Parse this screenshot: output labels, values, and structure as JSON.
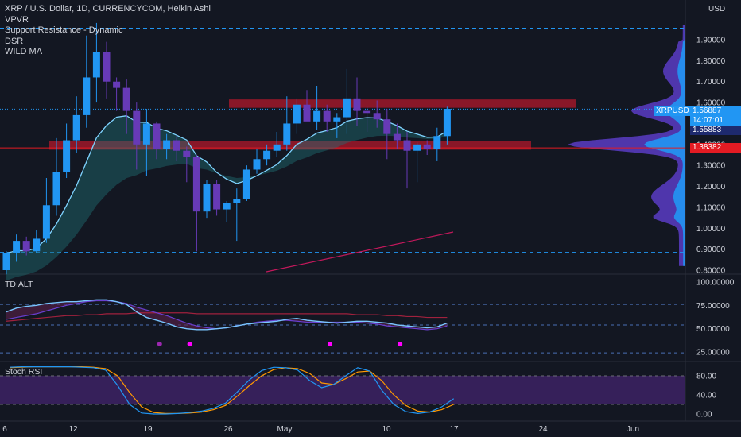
{
  "legend": {
    "title": "XRP / U.S. Dollar, 1D, CURRENCYCOM, Heikin Ashi",
    "indicators": [
      "VPVR",
      "Support Resistance - Dynamic",
      "DSR",
      "WILD MA"
    ]
  },
  "price_axis": {
    "currency": "USD",
    "ticks": [
      "1.90000",
      "1.80000",
      "1.70000",
      "1.60000",
      "1.50000",
      "1.40000",
      "1.30000",
      "1.20000",
      "1.10000",
      "1.00000",
      "0.90000",
      "0.80000"
    ],
    "symbol_tag": "XRPUSD",
    "last_price": "1.56887",
    "countdown": "14:07:01",
    "level_1": "1.55883",
    "level_2": "1.38382"
  },
  "tdi_pane": {
    "title": "TDIALT",
    "ticks": [
      "100.00000",
      "75.00000",
      "50.00000",
      "25.00000"
    ]
  },
  "stoch_pane": {
    "title": "Stoch RSI",
    "ticks": [
      "80.00",
      "40.00",
      "0.00"
    ]
  },
  "time_axis": {
    "labels": [
      "6",
      "12",
      "19",
      "26",
      "May",
      "10",
      "17",
      "24",
      "Jun"
    ]
  },
  "colors": {
    "background": "#131722",
    "bull_candle": "#2196f3",
    "bear_candle": "#673ab7",
    "resistance_zone": "#b2182b",
    "last_price_tag": "#2196f3",
    "support_tag": "#e31b23",
    "stoch_band": "#3b2160"
  },
  "chart_data": {
    "type": "candlestick",
    "candles": [
      {
        "o": 0.8,
        "h": 0.89,
        "l": 0.78,
        "c": 0.88
      },
      {
        "o": 0.88,
        "h": 0.97,
        "l": 0.84,
        "c": 0.94
      },
      {
        "o": 0.94,
        "h": 0.96,
        "l": 0.87,
        "c": 0.89
      },
      {
        "o": 0.89,
        "h": 0.99,
        "l": 0.88,
        "c": 0.95
      },
      {
        "o": 0.95,
        "h": 1.24,
        "l": 0.93,
        "c": 1.11
      },
      {
        "o": 1.11,
        "h": 1.43,
        "l": 1.06,
        "c": 1.27
      },
      {
        "o": 1.27,
        "h": 1.5,
        "l": 1.24,
        "c": 1.42
      },
      {
        "o": 1.42,
        "h": 1.63,
        "l": 1.36,
        "c": 1.54
      },
      {
        "o": 1.54,
        "h": 1.92,
        "l": 1.48,
        "c": 1.72
      },
      {
        "o": 1.72,
        "h": 1.98,
        "l": 1.6,
        "c": 1.84
      },
      {
        "o": 1.84,
        "h": 1.89,
        "l": 1.62,
        "c": 1.7
      },
      {
        "o": 1.7,
        "h": 1.72,
        "l": 1.56,
        "c": 1.67
      },
      {
        "o": 1.67,
        "h": 1.71,
        "l": 1.45,
        "c": 1.56
      },
      {
        "o": 1.56,
        "h": 1.6,
        "l": 1.28,
        "c": 1.4
      },
      {
        "o": 1.4,
        "h": 1.57,
        "l": 1.25,
        "c": 1.5
      },
      {
        "o": 1.5,
        "h": 1.51,
        "l": 1.33,
        "c": 1.38
      },
      {
        "o": 1.38,
        "h": 1.45,
        "l": 1.33,
        "c": 1.42
      },
      {
        "o": 1.42,
        "h": 1.44,
        "l": 1.32,
        "c": 1.37
      },
      {
        "o": 1.37,
        "h": 1.39,
        "l": 1.22,
        "c": 1.34
      },
      {
        "o": 1.34,
        "h": 1.35,
        "l": 0.89,
        "c": 1.08
      },
      {
        "o": 1.08,
        "h": 1.23,
        "l": 1.05,
        "c": 1.21
      },
      {
        "o": 1.21,
        "h": 1.23,
        "l": 1.06,
        "c": 1.09
      },
      {
        "o": 1.09,
        "h": 1.13,
        "l": 1.03,
        "c": 1.12
      },
      {
        "o": 1.12,
        "h": 1.19,
        "l": 0.94,
        "c": 1.14
      },
      {
        "o": 1.14,
        "h": 1.3,
        "l": 1.13,
        "c": 1.28
      },
      {
        "o": 1.28,
        "h": 1.38,
        "l": 1.26,
        "c": 1.33
      },
      {
        "o": 1.33,
        "h": 1.4,
        "l": 1.3,
        "c": 1.37
      },
      {
        "o": 1.37,
        "h": 1.46,
        "l": 1.34,
        "c": 1.4
      },
      {
        "o": 1.4,
        "h": 1.63,
        "l": 1.37,
        "c": 1.5
      },
      {
        "o": 1.5,
        "h": 1.62,
        "l": 1.45,
        "c": 1.59
      },
      {
        "o": 1.59,
        "h": 1.66,
        "l": 1.52,
        "c": 1.51
      },
      {
        "o": 1.51,
        "h": 1.68,
        "l": 1.47,
        "c": 1.56
      },
      {
        "o": 1.56,
        "h": 1.59,
        "l": 1.46,
        "c": 1.51
      },
      {
        "o": 1.51,
        "h": 1.55,
        "l": 1.43,
        "c": 1.53
      },
      {
        "o": 1.53,
        "h": 1.76,
        "l": 1.45,
        "c": 1.62
      },
      {
        "o": 1.62,
        "h": 1.72,
        "l": 1.49,
        "c": 1.56
      },
      {
        "o": 1.56,
        "h": 1.58,
        "l": 1.46,
        "c": 1.55
      },
      {
        "o": 1.55,
        "h": 1.61,
        "l": 1.48,
        "c": 1.52
      },
      {
        "o": 1.52,
        "h": 1.57,
        "l": 1.33,
        "c": 1.45
      },
      {
        "o": 1.45,
        "h": 1.5,
        "l": 1.38,
        "c": 1.42
      },
      {
        "o": 1.42,
        "h": 1.46,
        "l": 1.19,
        "c": 1.37
      },
      {
        "o": 1.37,
        "h": 1.41,
        "l": 1.22,
        "c": 1.4
      },
      {
        "o": 1.4,
        "h": 1.42,
        "l": 1.35,
        "c": 1.38
      },
      {
        "o": 1.38,
        "h": 1.48,
        "l": 1.32,
        "c": 1.44
      },
      {
        "o": 1.44,
        "h": 1.58,
        "l": 1.4,
        "c": 1.57
      }
    ],
    "price_range": [
      0.78,
      2.0
    ],
    "support_line": 1.38382,
    "dashed_levels": [
      1.955,
      0.885
    ],
    "resistance_zone": [
      1.575,
      1.615
    ],
    "support_zone": [
      1.375,
      1.415
    ],
    "tdi": {
      "range": [
        10,
        100
      ],
      "levels": [
        76,
        54,
        24
      ],
      "fast": [
        68,
        72,
        74,
        75,
        77,
        78,
        79,
        79,
        80,
        81,
        81,
        79,
        76,
        68,
        62,
        59,
        56,
        52,
        50,
        49,
        49,
        50,
        51,
        53,
        55,
        56,
        57,
        58,
        60,
        61,
        59,
        58,
        57,
        56,
        57,
        58,
        58,
        57,
        56,
        54,
        53,
        52,
        51,
        52,
        56
      ],
      "slow": [
        60,
        62,
        64,
        66,
        69,
        72,
        75,
        77,
        79,
        80,
        80,
        79,
        77,
        73,
        70,
        67,
        64,
        60,
        56,
        53,
        51,
        50,
        51,
        53,
        55,
        57,
        58,
        59,
        59,
        58,
        57,
        57,
        57,
        57,
        57,
        57,
        56,
        55,
        53,
        52,
        51,
        50,
        49,
        50,
        53
      ],
      "signal": [
        58,
        59,
        60,
        61,
        62,
        63,
        64,
        64,
        65,
        65,
        66,
        66,
        66,
        67,
        67,
        67,
        67,
        67,
        67,
        66,
        66,
        66,
        66,
        66,
        66,
        66,
        66,
        66,
        66,
        66,
        66,
        66,
        66,
        66,
        66,
        65,
        65,
        65,
        64,
        64,
        63,
        63,
        62,
        62,
        62
      ],
      "dots": [
        {
          "i": 15,
          "c": "#9c27b0"
        },
        {
          "i": 18,
          "c": "#ff00ff"
        },
        {
          "i": 32,
          "c": "#ff00ff"
        },
        {
          "i": 39,
          "c": "#ff00ff"
        }
      ]
    },
    "stoch": {
      "range": [
        -10,
        100
      ],
      "levels": [
        80,
        20
      ],
      "k": [
        98,
        99,
        99,
        99,
        99,
        99,
        98,
        97,
        92,
        60,
        20,
        2,
        0,
        0,
        1,
        3,
        6,
        12,
        23,
        47,
        72,
        91,
        98,
        97,
        92,
        70,
        55,
        62,
        80,
        97,
        90,
        50,
        20,
        5,
        1,
        4,
        15,
        32
      ],
      "d": [
        97,
        98,
        99,
        99,
        99,
        99,
        99,
        98,
        95,
        80,
        45,
        15,
        3,
        1,
        1,
        2,
        4,
        9,
        18,
        38,
        60,
        80,
        93,
        97,
        95,
        85,
        65,
        62,
        74,
        88,
        90,
        70,
        40,
        18,
        6,
        4,
        9,
        20
      ]
    }
  }
}
